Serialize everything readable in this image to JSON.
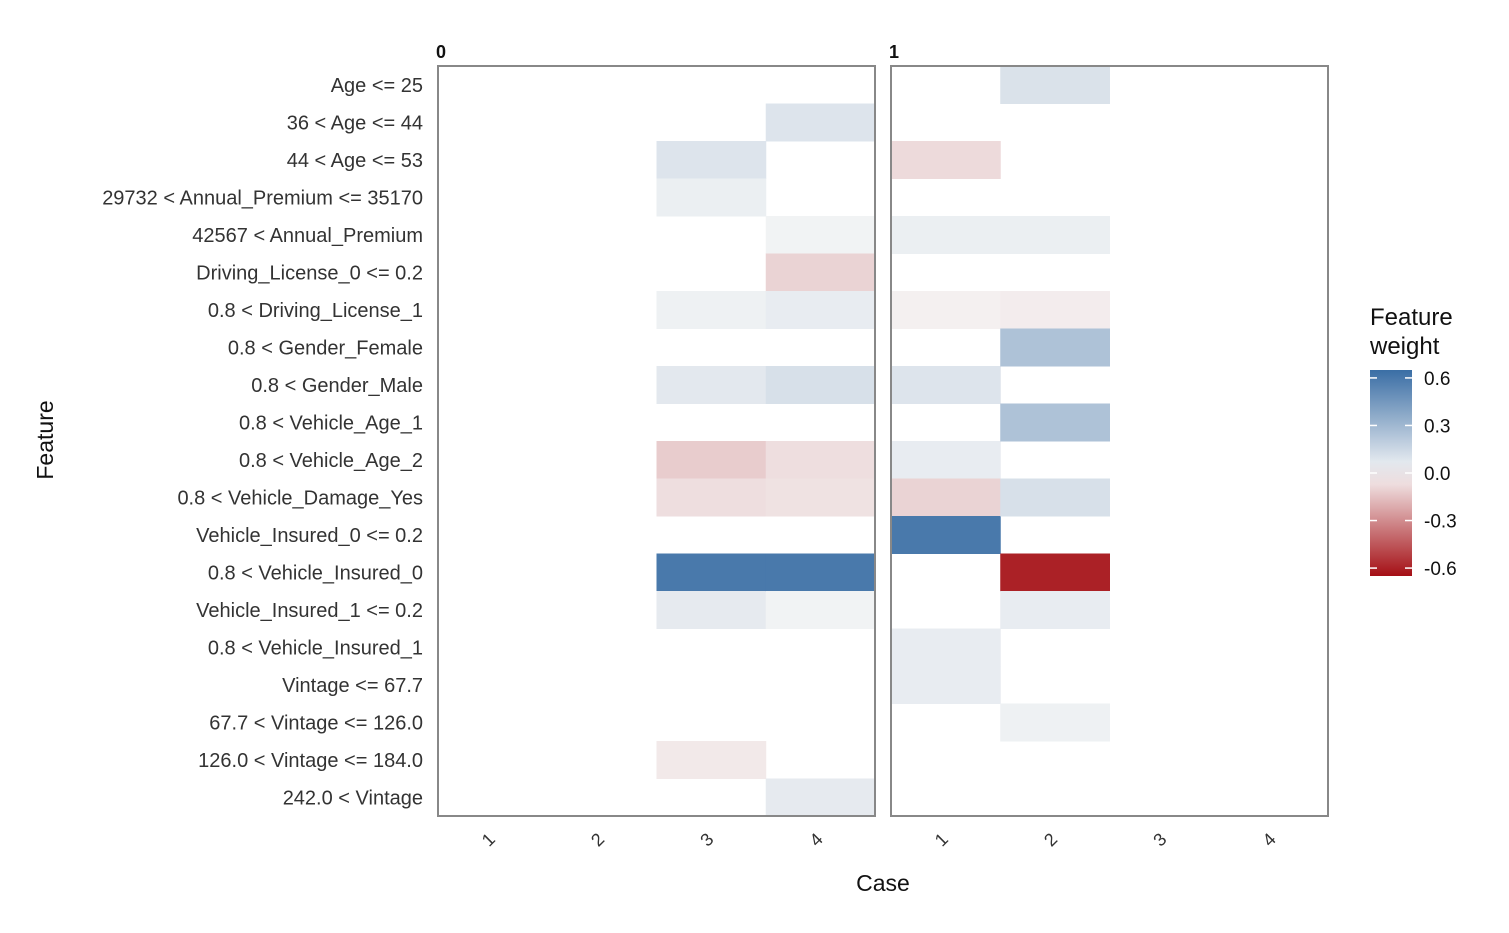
{
  "chart_data": {
    "type": "heatmap",
    "xlabel": "Case",
    "ylabel": "Feature",
    "facets": [
      "0",
      "1"
    ],
    "cases": [
      "1",
      "2",
      "3",
      "4"
    ],
    "features": [
      "Age <= 25",
      "36 < Age <= 44",
      "44 < Age <= 53",
      "29732 < Annual_Premium <= 35170",
      "42567 < Annual_Premium",
      "Driving_License_0 <= 0.2",
      "0.8 < Driving_License_1",
      "0.8 < Gender_Female",
      "0.8 < Gender_Male",
      "0.8 < Vehicle_Age_1",
      "0.8 < Vehicle_Age_2",
      "0.8 < Vehicle_Damage_Yes",
      "Vehicle_Insured_0 <= 0.2",
      "0.8 < Vehicle_Insured_0",
      "Vehicle_Insured_1 <= 0.2",
      "0.8 < Vehicle_Insured_1",
      "Vintage <= 67.7",
      "67.7 < Vintage <= 126.0",
      "126.0 < Vintage <= 184.0",
      "242.0 < Vintage"
    ],
    "cells": [
      {
        "facet": "0",
        "case": "3",
        "feature": "44 < Age <= 53",
        "weight": 0.09
      },
      {
        "facet": "0",
        "case": "3",
        "feature": "29732 < Annual_Premium <= 35170",
        "weight": 0.04
      },
      {
        "facet": "0",
        "case": "3",
        "feature": "0.8 < Driving_License_1",
        "weight": 0.03
      },
      {
        "facet": "0",
        "case": "3",
        "feature": "0.8 < Gender_Male",
        "weight": 0.07
      },
      {
        "facet": "0",
        "case": "3",
        "feature": "0.8 < Vehicle_Age_2",
        "weight": -0.12
      },
      {
        "facet": "0",
        "case": "3",
        "feature": "0.8 < Vehicle_Damage_Yes",
        "weight": -0.07
      },
      {
        "facet": "0",
        "case": "3",
        "feature": "0.8 < Vehicle_Insured_0",
        "weight": 0.6
      },
      {
        "facet": "0",
        "case": "3",
        "feature": "Vehicle_Insured_1 <= 0.2",
        "weight": 0.06
      },
      {
        "facet": "0",
        "case": "3",
        "feature": "126.0 < Vintage <= 184.0",
        "weight": -0.04
      },
      {
        "facet": "0",
        "case": "4",
        "feature": "36 < Age <= 44",
        "weight": 0.09
      },
      {
        "facet": "0",
        "case": "4",
        "feature": "42567 < Annual_Premium",
        "weight": 0.02
      },
      {
        "facet": "0",
        "case": "4",
        "feature": "Driving_License_0 <= 0.2",
        "weight": -0.1
      },
      {
        "facet": "0",
        "case": "4",
        "feature": "0.8 < Driving_License_1",
        "weight": 0.05
      },
      {
        "facet": "0",
        "case": "4",
        "feature": "0.8 < Gender_Male",
        "weight": 0.11
      },
      {
        "facet": "0",
        "case": "4",
        "feature": "0.8 < Vehicle_Age_2",
        "weight": -0.07
      },
      {
        "facet": "0",
        "case": "4",
        "feature": "0.8 < Vehicle_Damage_Yes",
        "weight": -0.06
      },
      {
        "facet": "0",
        "case": "4",
        "feature": "0.8 < Vehicle_Insured_0",
        "weight": 0.6
      },
      {
        "facet": "0",
        "case": "4",
        "feature": "Vehicle_Insured_1 <= 0.2",
        "weight": 0.02
      },
      {
        "facet": "0",
        "case": "4",
        "feature": "242.0 < Vintage",
        "weight": 0.06
      },
      {
        "facet": "1",
        "case": "1",
        "feature": "44 < Age <= 53",
        "weight": -0.08
      },
      {
        "facet": "1",
        "case": "1",
        "feature": "42567 < Annual_Premium",
        "weight": 0.04
      },
      {
        "facet": "1",
        "case": "1",
        "feature": "0.8 < Driving_License_1",
        "weight": -0.02
      },
      {
        "facet": "1",
        "case": "1",
        "feature": "0.8 < Gender_Male",
        "weight": 0.09
      },
      {
        "facet": "1",
        "case": "1",
        "feature": "0.8 < Vehicle_Age_2",
        "weight": 0.05
      },
      {
        "facet": "1",
        "case": "1",
        "feature": "0.8 < Vehicle_Damage_Yes",
        "weight": -0.1
      },
      {
        "facet": "1",
        "case": "1",
        "feature": "Vehicle_Insured_0 <= 0.2",
        "weight": 0.6
      },
      {
        "facet": "1",
        "case": "1",
        "feature": "0.8 < Vehicle_Insured_1",
        "weight": 0.05
      },
      {
        "facet": "1",
        "case": "1",
        "feature": "Vintage <= 67.7",
        "weight": 0.05
      },
      {
        "facet": "1",
        "case": "2",
        "feature": "Age <= 25",
        "weight": 0.1
      },
      {
        "facet": "1",
        "case": "2",
        "feature": "42567 < Annual_Premium",
        "weight": 0.04
      },
      {
        "facet": "1",
        "case": "2",
        "feature": "0.8 < Driving_License_1",
        "weight": -0.03
      },
      {
        "facet": "1",
        "case": "2",
        "feature": "0.8 < Gender_Female",
        "weight": 0.25
      },
      {
        "facet": "1",
        "case": "2",
        "feature": "0.8 < Vehicle_Age_1",
        "weight": 0.25
      },
      {
        "facet": "1",
        "case": "2",
        "feature": "0.8 < Vehicle_Damage_Yes",
        "weight": 0.11
      },
      {
        "facet": "1",
        "case": "2",
        "feature": "0.8 < Vehicle_Insured_0",
        "weight": -0.6
      },
      {
        "facet": "1",
        "case": "2",
        "feature": "Vehicle_Insured_1 <= 0.2",
        "weight": 0.05
      },
      {
        "facet": "1",
        "case": "2",
        "feature": "67.7 < Vintage <= 126.0",
        "weight": 0.03
      }
    ],
    "legend": {
      "title": "Feature weight",
      "title_lines": [
        "Feature",
        "weight"
      ],
      "ticks": [
        0.6,
        0.3,
        0.0,
        -0.3,
        -0.6
      ],
      "tick_labels": [
        "0.6",
        "0.3",
        "0.0",
        "-0.3",
        "-0.6"
      ],
      "range": [
        -0.65,
        0.65
      ],
      "placement": "right",
      "colors": {
        "low": "#a50f15",
        "mid": "#f7f7f7",
        "high": "#3a6ea5"
      }
    }
  }
}
